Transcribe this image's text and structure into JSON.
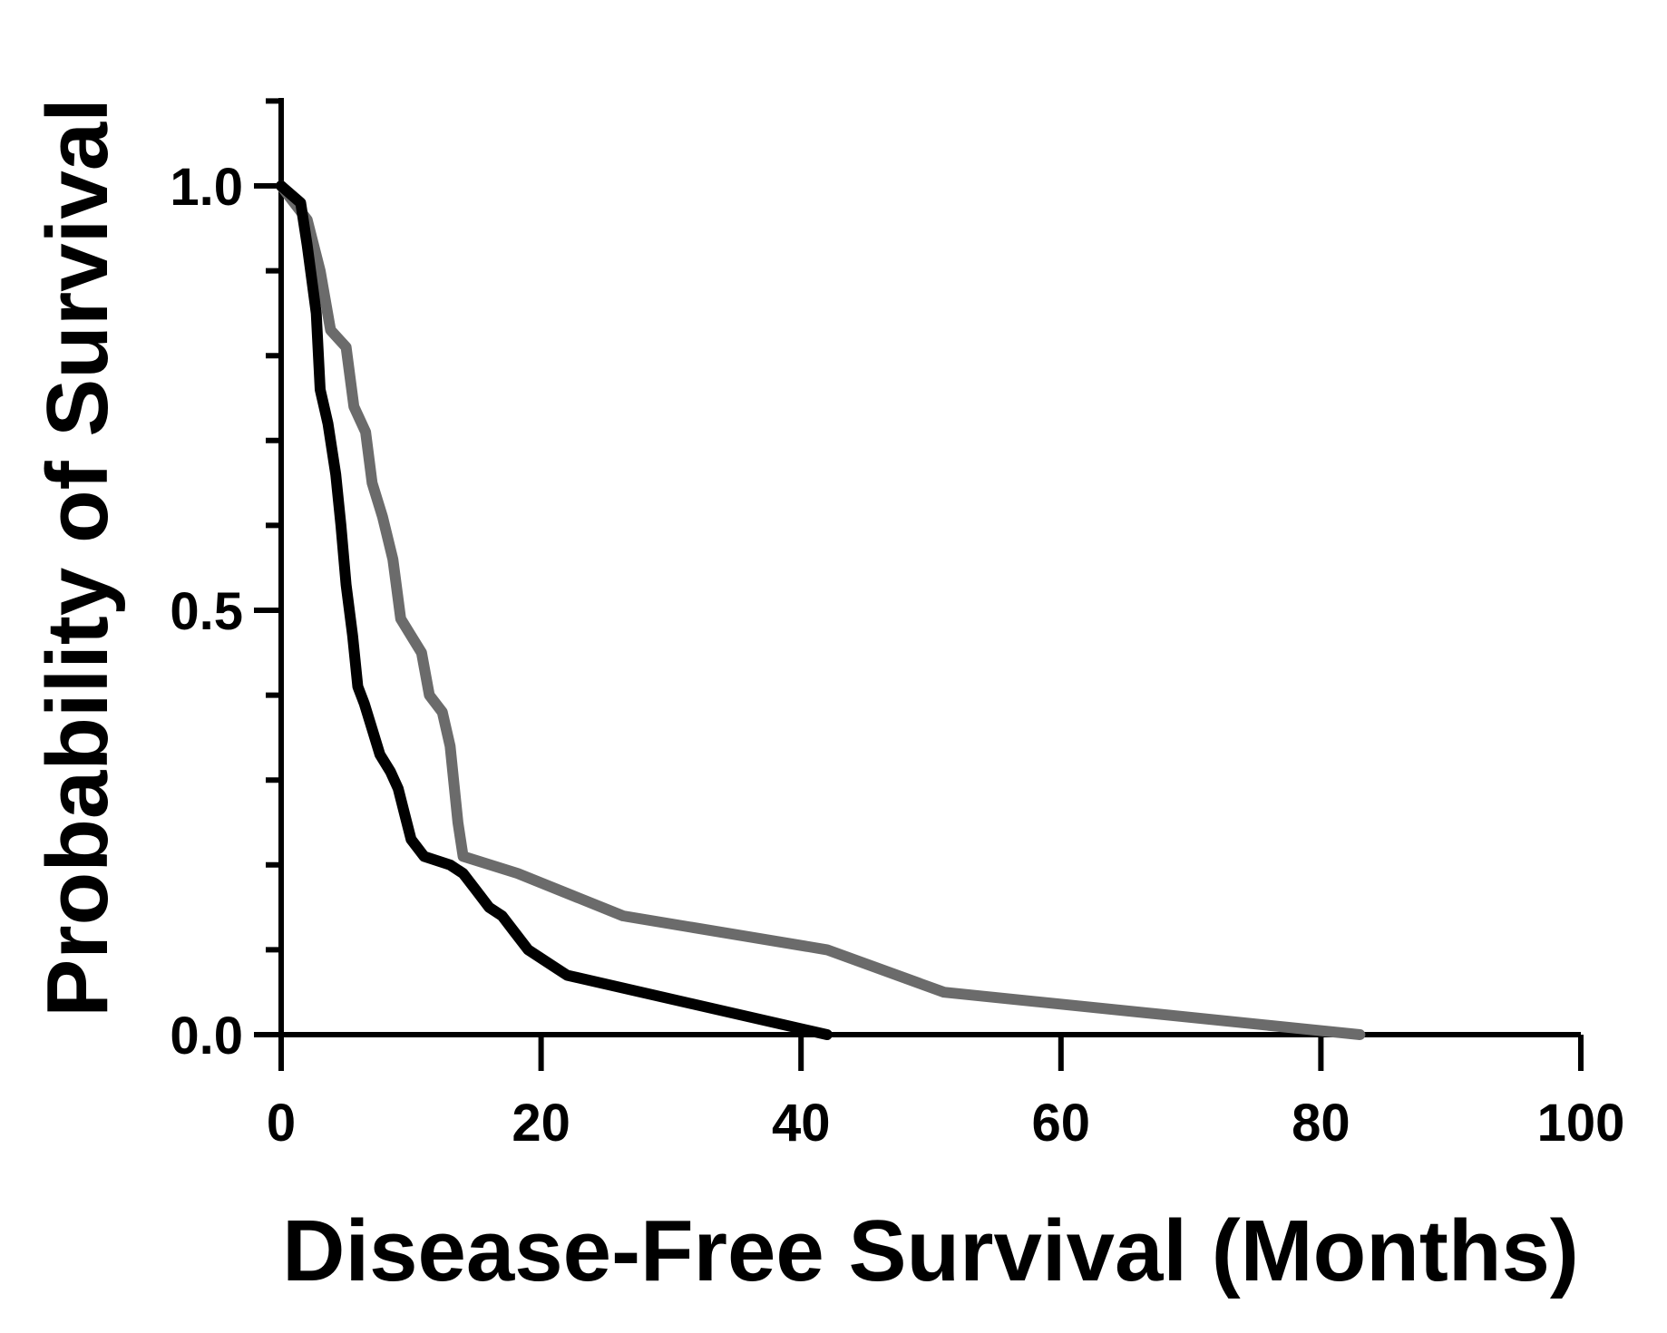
{
  "chart_data": {
    "type": "line",
    "title": "",
    "xlabel": "Disease-Free Survival (Months)",
    "ylabel": "Probability of Survival",
    "xlim": [
      0,
      100
    ],
    "ylim": [
      0,
      1.1
    ],
    "x_ticks": [
      0,
      20,
      40,
      60,
      80,
      100
    ],
    "y_ticks": [
      0.0,
      0.5,
      1.0
    ],
    "x_tick_labels": [
      "0",
      "20",
      "40",
      "60",
      "80",
      "100"
    ],
    "y_tick_labels": [
      "0.0",
      "0.5",
      "1.0"
    ],
    "grid": false,
    "legend": "none",
    "series": [
      {
        "name": "gray curve",
        "color": "#6b6b6b",
        "points": [
          [
            0,
            1.0
          ],
          [
            1,
            0.98
          ],
          [
            2,
            0.96
          ],
          [
            3,
            0.9
          ],
          [
            3.8,
            0.83
          ],
          [
            5,
            0.81
          ],
          [
            5.6,
            0.74
          ],
          [
            6.5,
            0.71
          ],
          [
            7,
            0.65
          ],
          [
            7.8,
            0.61
          ],
          [
            8.6,
            0.56
          ],
          [
            9.2,
            0.49
          ],
          [
            10,
            0.47
          ],
          [
            10.8,
            0.45
          ],
          [
            11.4,
            0.4
          ],
          [
            12.4,
            0.38
          ],
          [
            13,
            0.34
          ],
          [
            13.6,
            0.25
          ],
          [
            14,
            0.21
          ],
          [
            18.2,
            0.19
          ],
          [
            26.3,
            0.14
          ],
          [
            42,
            0.1
          ],
          [
            51,
            0.05
          ],
          [
            83,
            0.0
          ]
        ]
      },
      {
        "name": "black curve",
        "color": "#000000",
        "points": [
          [
            0,
            1.0
          ],
          [
            1.5,
            0.98
          ],
          [
            2,
            0.93
          ],
          [
            2.7,
            0.85
          ],
          [
            3,
            0.76
          ],
          [
            3.6,
            0.72
          ],
          [
            4.2,
            0.66
          ],
          [
            4.6,
            0.6
          ],
          [
            5,
            0.53
          ],
          [
            5.5,
            0.47
          ],
          [
            5.9,
            0.41
          ],
          [
            6.4,
            0.39
          ],
          [
            7,
            0.36
          ],
          [
            7.6,
            0.33
          ],
          [
            8.4,
            0.31
          ],
          [
            9,
            0.29
          ],
          [
            9.5,
            0.26
          ],
          [
            10,
            0.23
          ],
          [
            11,
            0.21
          ],
          [
            13,
            0.2
          ],
          [
            14,
            0.19
          ],
          [
            15,
            0.17
          ],
          [
            16,
            0.15
          ],
          [
            17,
            0.14
          ],
          [
            18,
            0.12
          ],
          [
            19,
            0.1
          ],
          [
            21,
            0.08
          ],
          [
            22,
            0.07
          ],
          [
            42,
            0.0
          ]
        ]
      }
    ]
  }
}
